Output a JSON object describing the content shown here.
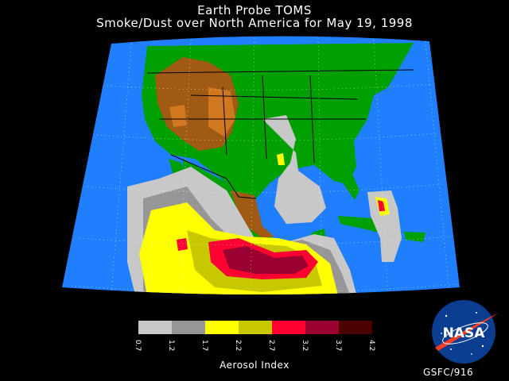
{
  "title_line1": "Earth Probe TOMS",
  "title_line2": "Smoke/Dust over North America for May 19, 1998",
  "legend": {
    "label": "Aerosol Index",
    "ticks": [
      "0.7",
      "1.2",
      "1.7",
      "2.2",
      "2.7",
      "3.2",
      "3.7",
      "4.2"
    ],
    "colors": [
      "#c8c8c8",
      "#969696",
      "#ffff00",
      "#c8c800",
      "#ff0032",
      "#9a0030",
      "#4a0000"
    ]
  },
  "logo_text": "NASA",
  "credit": "GSFC/916",
  "colors": {
    "ocean": "#1f7fff",
    "land": "#00a000",
    "land_dark": "#008000",
    "terrain": "#a05a14",
    "terrain_light": "#d07820",
    "background": "#000000"
  }
}
